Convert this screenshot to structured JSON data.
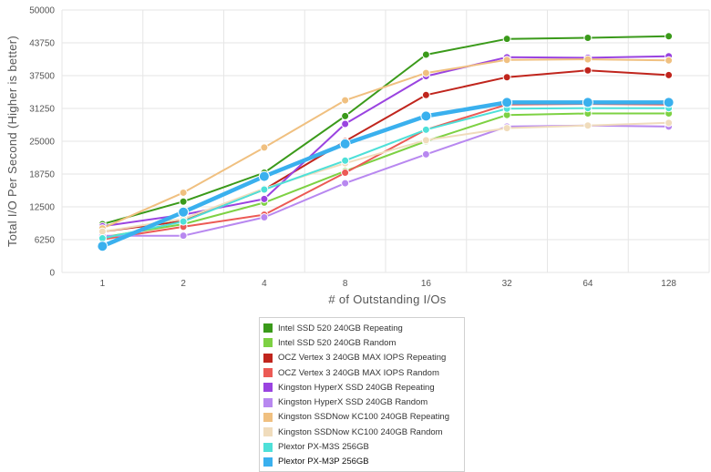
{
  "chart_data": {
    "type": "line",
    "title": "",
    "xlabel": "# of Outstanding I/Os",
    "ylabel": "Total I/O Per Second (Higher is better)",
    "categories": [
      "1",
      "2",
      "4",
      "8",
      "16",
      "32",
      "64",
      "128"
    ],
    "yticks": [
      "0",
      "6250",
      "12500",
      "18750",
      "25000",
      "31250",
      "37500",
      "43750",
      "50000"
    ],
    "ylim": [
      0,
      50000
    ],
    "grid": true,
    "legend_position": "bottom",
    "series": [
      {
        "name": "Intel SSD 520 240GB Repeating",
        "color": "#3a9a1a",
        "values": [
          9200,
          13500,
          19000,
          29800,
          41500,
          44500,
          44700,
          45000
        ]
      },
      {
        "name": "Intel SSD 520 240GB Random",
        "color": "#7dd143",
        "values": [
          6700,
          9200,
          13300,
          19300,
          25000,
          30000,
          30300,
          30300
        ]
      },
      {
        "name": "OCZ Vertex 3 240GB MAX IOPS Repeating",
        "color": "#c0251d",
        "values": [
          7800,
          9800,
          15800,
          25000,
          33800,
          37200,
          38500,
          37600
        ]
      },
      {
        "name": "OCZ Vertex 3 240GB MAX IOPS Random",
        "color": "#ec5a55",
        "values": [
          6300,
          8700,
          11000,
          19000,
          27200,
          32000,
          32100,
          32000
        ]
      },
      {
        "name": "Kingston HyperX SSD 240GB Repeating",
        "color": "#9a43e0",
        "values": [
          8800,
          11000,
          14000,
          28300,
          37400,
          41000,
          40900,
          41200
        ]
      },
      {
        "name": "Kingston HyperX SSD 240GB Random",
        "color": "#b888f0",
        "values": [
          7000,
          7000,
          10500,
          17000,
          22500,
          27800,
          28000,
          27800
        ]
      },
      {
        "name": "Kingston SSDNow KC100 240GB Repeating",
        "color": "#f0c080",
        "values": [
          8400,
          15200,
          23800,
          32800,
          38000,
          40500,
          40600,
          40400
        ]
      },
      {
        "name": "Kingston SSDNow KC100 240GB Random",
        "color": "#f0dcbc",
        "values": [
          7800,
          10200,
          16000,
          20800,
          25200,
          27500,
          28000,
          28500
        ]
      },
      {
        "name": "Plextor PX-M3S 256GB",
        "color": "#4ee0d8",
        "values": [
          6500,
          9700,
          15800,
          21300,
          27200,
          31200,
          31300,
          31300
        ]
      },
      {
        "name": "Plextor PX-M3P 256GB",
        "color": "#3ab0ee",
        "values": [
          5000,
          11500,
          18300,
          24500,
          29800,
          32400,
          32400,
          32400
        ]
      }
    ]
  }
}
